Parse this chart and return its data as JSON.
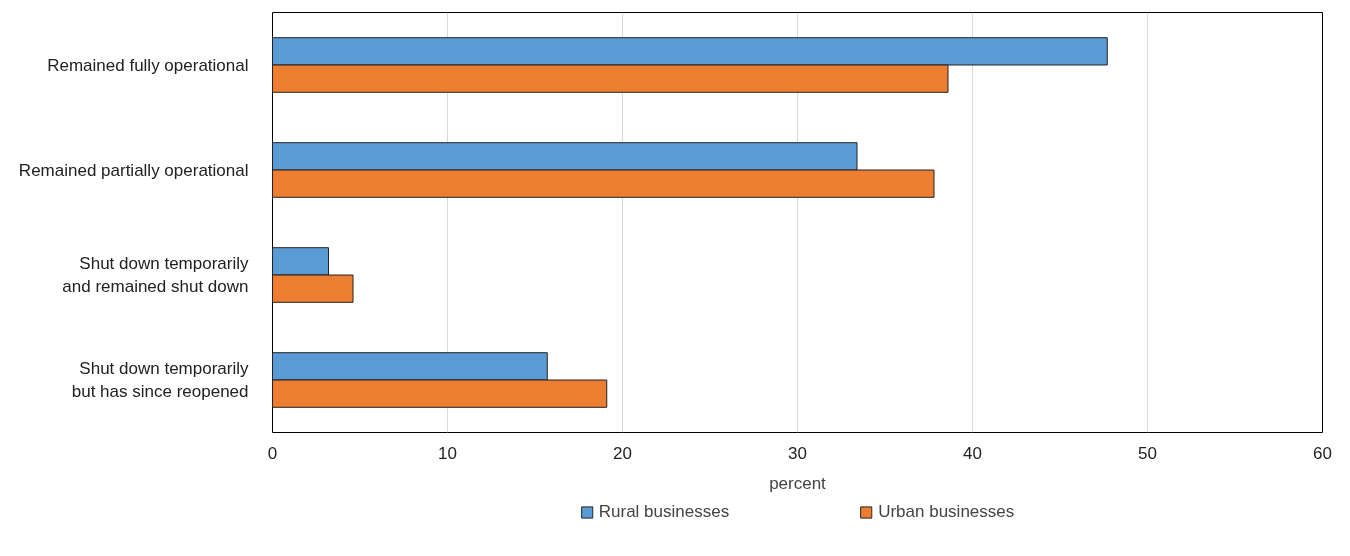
{
  "chart_data": {
    "type": "bar",
    "orientation": "horizontal",
    "xlabel": "percent",
    "categories": [
      "Remained fully operational",
      "Remained partially operational",
      "Shut down temporarily\nand remained shut down",
      "Shut down temporarily\nbut has since reopened"
    ],
    "series": [
      {
        "name": "Rural businesses",
        "color": "#5b9bd5",
        "values": [
          47.7,
          33.4,
          3.2,
          15.7
        ]
      },
      {
        "name": "Urban businesses",
        "color": "#ed7d31",
        "values": [
          38.6,
          37.8,
          4.6,
          19.1
        ]
      }
    ],
    "xlim": [
      0,
      60
    ],
    "xticks": [
      0,
      10,
      20,
      30,
      40,
      50,
      60
    ],
    "grid": "x",
    "legend": "bottom"
  }
}
